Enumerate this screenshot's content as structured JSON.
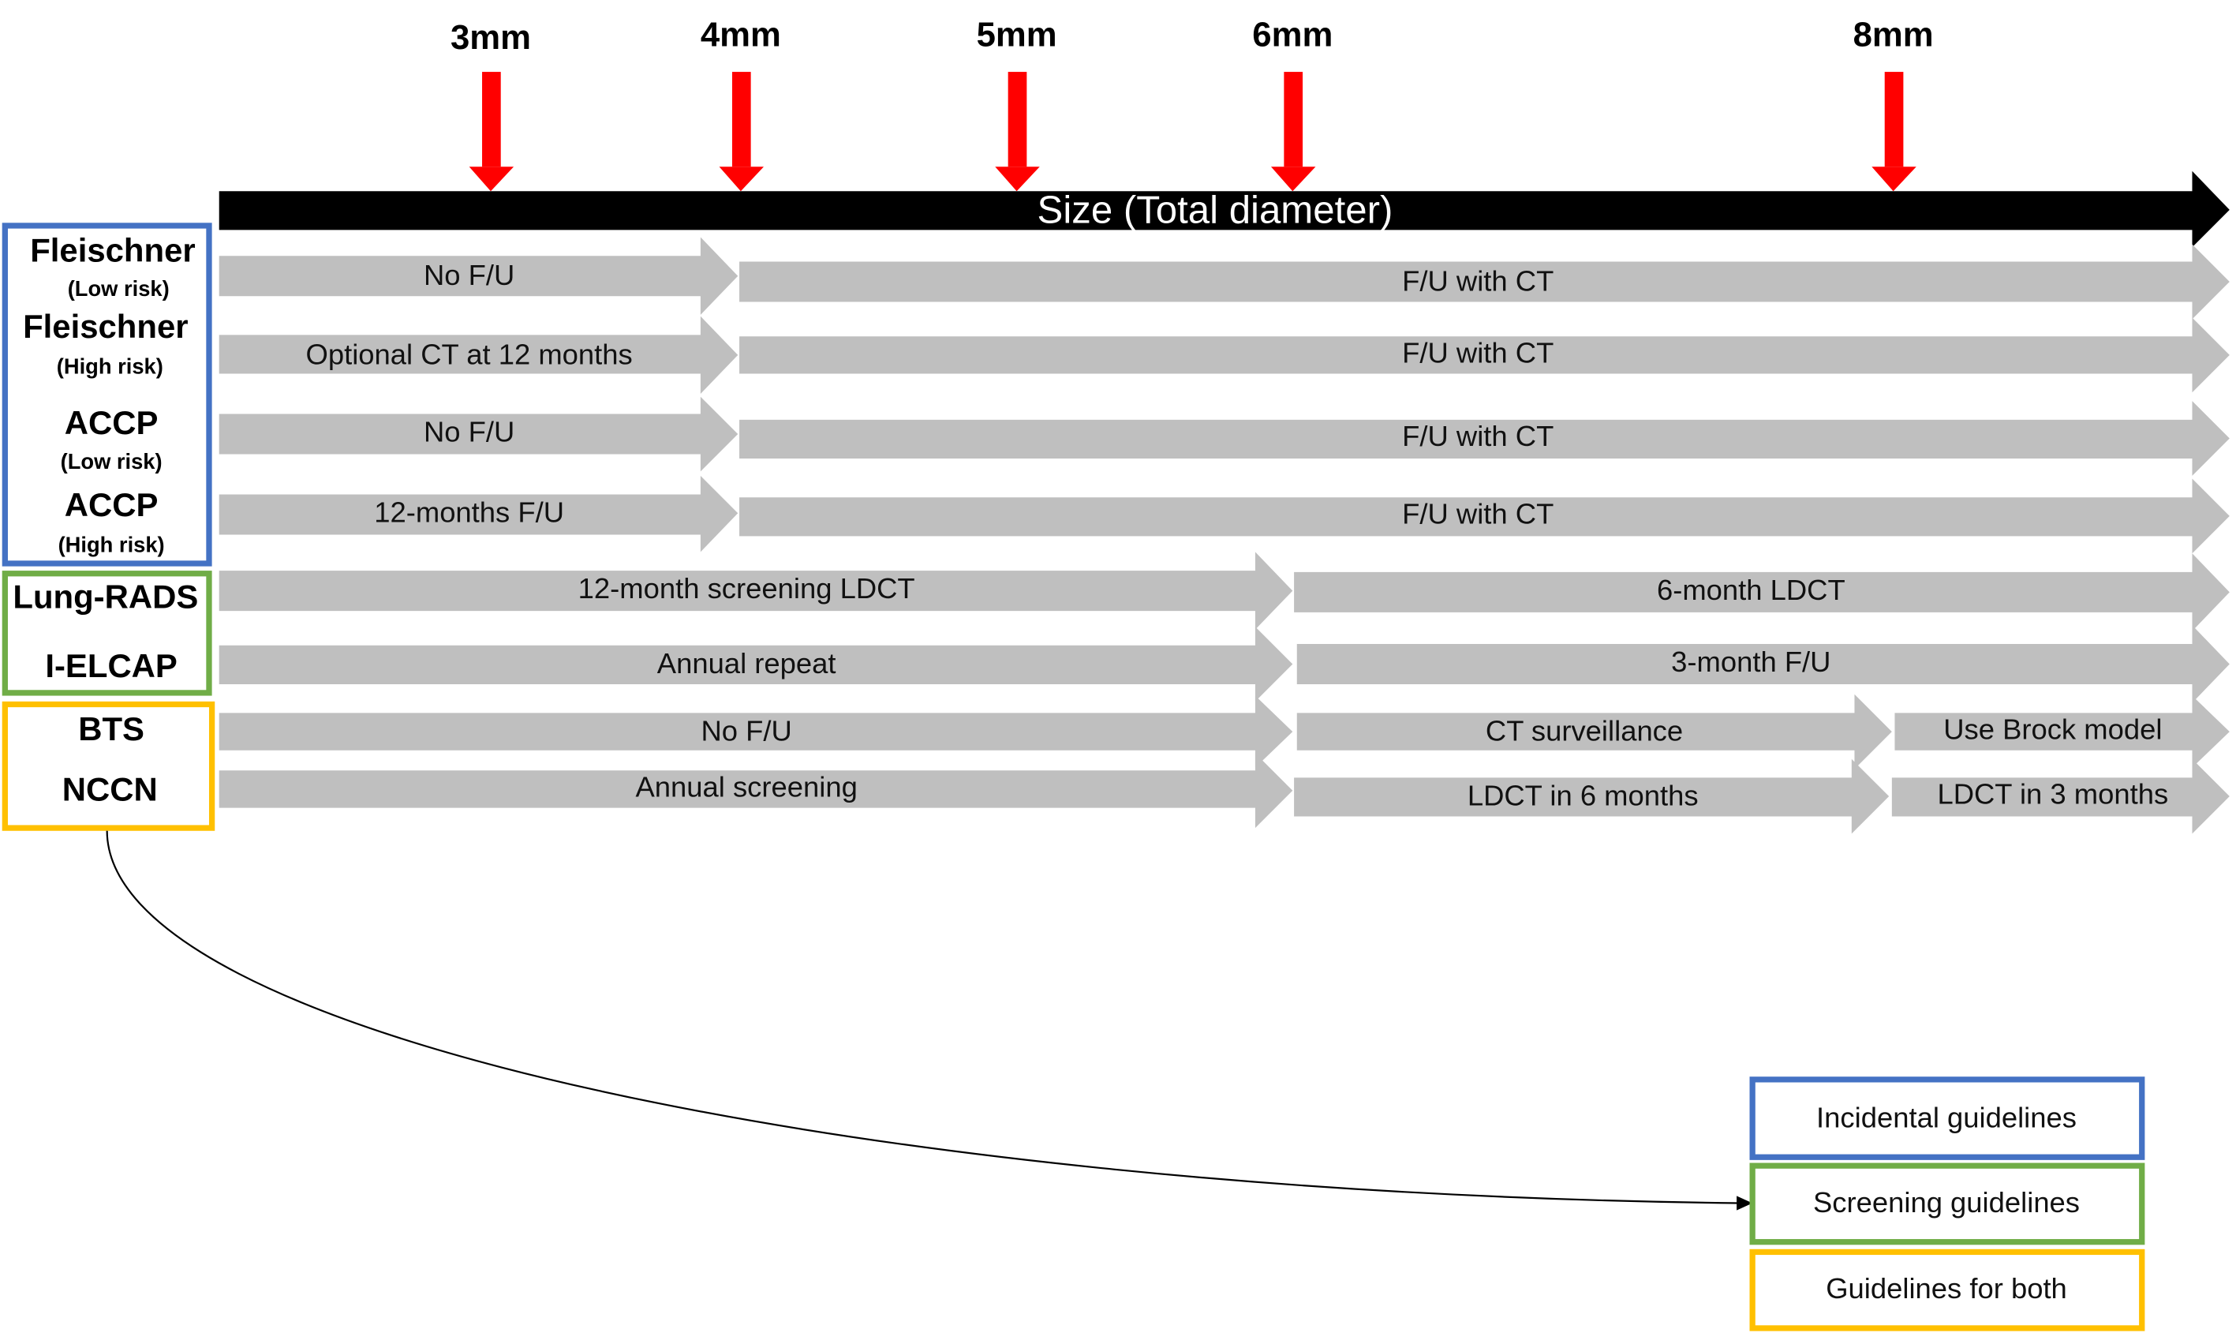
{
  "colors": {
    "incidental": "#4472C4",
    "screening": "#70AD47",
    "both": "#FFC000",
    "marker": "#FF0000",
    "bar": "#BFBFBF",
    "axis": "#000000"
  },
  "size_markers": [
    "3mm",
    "4mm",
    "5mm",
    "6mm",
    "8mm"
  ],
  "axis_label": "Size (Total diameter)",
  "guidelines": [
    {
      "name": "Fleischner",
      "sub": "(Low risk)"
    },
    {
      "name": "Fleischner",
      "sub": "(High risk)"
    },
    {
      "name": "ACCP",
      "sub": "(Low risk)"
    },
    {
      "name": "ACCP",
      "sub": "(High risk)"
    },
    {
      "name": "Lung-RADS"
    },
    {
      "name": "I-ELCAP"
    },
    {
      "name": "BTS"
    },
    {
      "name": "NCCN"
    }
  ],
  "rows": [
    [
      "No F/U",
      "F/U with CT"
    ],
    [
      "Optional CT at 12 months",
      "F/U with CT"
    ],
    [
      "No F/U",
      "F/U with CT"
    ],
    [
      "12-months F/U",
      "F/U with CT"
    ],
    [
      "12-month screening LDCT",
      "6-month LDCT"
    ],
    [
      "Annual repeat",
      "3-month F/U"
    ],
    [
      "No F/U",
      "CT surveillance",
      "Use Brock model"
    ],
    [
      "Annual screening",
      "LDCT in 6 months",
      "LDCT in 3 months"
    ]
  ],
  "legend": [
    "Incidental guidelines",
    "Screening guidelines",
    "Guidelines for both"
  ]
}
